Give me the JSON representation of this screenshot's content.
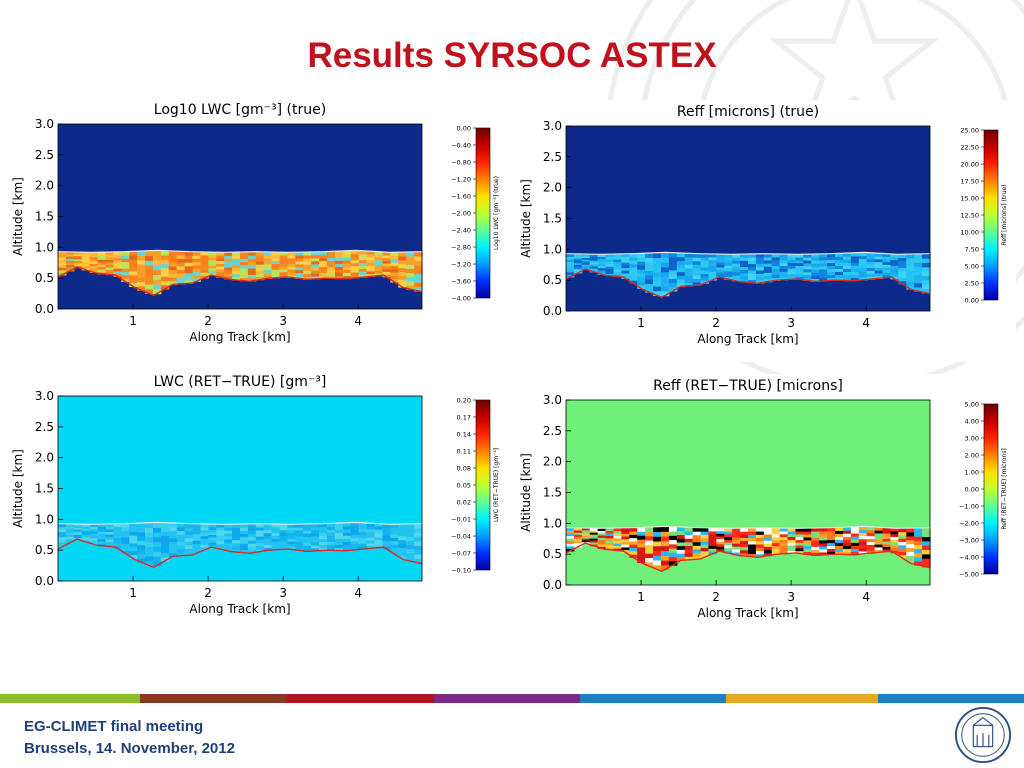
{
  "slide": {
    "title": "Results SYRSOC ASTEX",
    "footer_line1": "EG-CLIMET final meeting",
    "footer_line2": "Brussels, 14. November, 2012",
    "stripe_colors": [
      "#8cbf26",
      "#8a3a1c",
      "#b3121e",
      "#7b2b86",
      "#1d7fc4",
      "#e4a91c",
      "#1d7fc4"
    ],
    "title_color": "#c0121c",
    "footer_color": "#1f3f7a"
  },
  "chart_data": [
    {
      "type": "heatmap",
      "title": "Log10 LWC [gm⁻³] (true)",
      "xlabel": "Along Track [km]",
      "ylabel": "Altitude [km]",
      "xlim": [
        0,
        4.85
      ],
      "ylim": [
        0,
        3.0
      ],
      "xticks": [
        "1",
        "2",
        "3",
        "4"
      ],
      "yticks": [
        "0.0",
        "0.5",
        "1.0",
        "1.5",
        "2.0",
        "2.5",
        "3.0"
      ],
      "colorbar_label": "Log10 LWC [gm⁻³] (true)",
      "colorbar_ticks": [
        "0.00",
        "−0.40",
        "−0.80",
        "−1.20",
        "−1.60",
        "−2.00",
        "−2.40",
        "−2.80",
        "−3.20",
        "−3.60",
        "−4.00"
      ],
      "background": "#0c2a8a",
      "palette": [
        "#ff7f1f",
        "#f9a02a",
        "#ffb63a",
        "#e46a1a",
        "#f08c22",
        "#ffcf48",
        "#b8e35a",
        "#6ad4d0"
      ],
      "cloud_top_km": [
        0.93,
        0.92,
        0.93,
        0.95,
        0.93,
        0.92,
        0.93,
        0.92,
        0.93,
        0.95,
        0.92,
        0.93
      ],
      "cloud_base_km": [
        0.52,
        0.68,
        0.58,
        0.55,
        0.35,
        0.22,
        0.4,
        0.42,
        0.55,
        0.48,
        0.45,
        0.5,
        0.52,
        0.48,
        0.5,
        0.49,
        0.52,
        0.55,
        0.35,
        0.28
      ],
      "base_line_color": "#d92b1f"
    },
    {
      "type": "heatmap",
      "title": "Reff [microns] (true)",
      "xlabel": "Along Track [km]",
      "ylabel": "Altitude [km]",
      "xlim": [
        0,
        4.85
      ],
      "ylim": [
        0,
        3.0
      ],
      "xticks": [
        "1",
        "2",
        "3",
        "4"
      ],
      "yticks": [
        "0.0",
        "0.5",
        "1.0",
        "1.5",
        "2.0",
        "2.5",
        "3.0"
      ],
      "colorbar_label": "Reff [microns] (true)",
      "colorbar_ticks": [
        "25.00",
        "22.50",
        "20.00",
        "17.50",
        "15.00",
        "12.50",
        "10.00",
        "7.50",
        "5.00",
        "2.50",
        "0.00"
      ],
      "background": "#0c2a8a",
      "palette": [
        "#27c2f4",
        "#1aa6ef",
        "#41d3f4",
        "#0f86e0",
        "#1db4f0",
        "#2fcaf0",
        "#0e62c8"
      ],
      "cloud_top_km": [
        0.93,
        0.92,
        0.93,
        0.95,
        0.93,
        0.92,
        0.93,
        0.92,
        0.93,
        0.95,
        0.92,
        0.93
      ],
      "cloud_base_km": [
        0.52,
        0.68,
        0.58,
        0.55,
        0.35,
        0.22,
        0.4,
        0.42,
        0.55,
        0.48,
        0.45,
        0.5,
        0.52,
        0.48,
        0.5,
        0.49,
        0.52,
        0.55,
        0.35,
        0.28
      ],
      "base_line_color": "#d92b1f"
    },
    {
      "type": "heatmap",
      "title": "LWC (RET−TRUE) [gm⁻³]",
      "xlabel": "Along Track [km]",
      "ylabel": "Altitude [km]",
      "xlim": [
        0,
        4.85
      ],
      "ylim": [
        0,
        3.0
      ],
      "xticks": [
        "1",
        "2",
        "3",
        "4"
      ],
      "yticks": [
        "0.0",
        "0.5",
        "1.0",
        "1.5",
        "2.0",
        "2.5",
        "3.0"
      ],
      "colorbar_label": "LWC (RET−TRUE) [gm⁻³]",
      "colorbar_ticks": [
        "0.20",
        "0.17",
        "0.14",
        "0.11",
        "0.08",
        "0.05",
        "0.02",
        "−0.01",
        "−0.04",
        "−0.07",
        "−0.10"
      ],
      "background": "#00d8f6",
      "palette": [
        "#1ec6f2",
        "#37d0f2",
        "#14b4ee",
        "#29c0f0",
        "#52d6ee",
        "#0ea6ec"
      ],
      "cloud_top_km": [
        0.93,
        0.92,
        0.93,
        0.95,
        0.93,
        0.92,
        0.93,
        0.92,
        0.93,
        0.95,
        0.92,
        0.93
      ],
      "cloud_base_km": [
        0.52,
        0.68,
        0.58,
        0.55,
        0.35,
        0.22,
        0.4,
        0.42,
        0.55,
        0.48,
        0.45,
        0.5,
        0.52,
        0.48,
        0.5,
        0.49,
        0.52,
        0.55,
        0.35,
        0.28
      ],
      "base_line_color": "#d92b1f"
    },
    {
      "type": "heatmap",
      "title": "Reff (RET−TRUE) [microns]",
      "xlabel": "Along Track [km]",
      "ylabel": "Altitude [km]",
      "xlim": [
        0,
        4.85
      ],
      "ylim": [
        0,
        3.0
      ],
      "xticks": [
        "1",
        "2",
        "3",
        "4"
      ],
      "yticks": [
        "0.0",
        "0.5",
        "1.0",
        "1.5",
        "2.0",
        "2.5",
        "3.0"
      ],
      "colorbar_label": "Reff (RET−TRUE) [microns]",
      "colorbar_ticks": [
        "5.00",
        "4.00",
        "3.00",
        "2.00",
        "1.00",
        "0.00",
        "−1.00",
        "−2.00",
        "−3.00",
        "−4.00",
        "−5.00"
      ],
      "background": "#6ef07a",
      "palette": [
        "#ff2a1a",
        "#ffd23a",
        "#2ab8f4",
        "#000000",
        "#ff7a1a",
        "#7ae07a",
        "#d81414",
        "#ffa42a",
        "#ffffff"
      ],
      "cloud_top_km": [
        0.93,
        0.92,
        0.93,
        0.95,
        0.93,
        0.92,
        0.93,
        0.92,
        0.93,
        0.95,
        0.92,
        0.93
      ],
      "cloud_base_km": [
        0.52,
        0.68,
        0.58,
        0.55,
        0.35,
        0.22,
        0.4,
        0.42,
        0.55,
        0.48,
        0.45,
        0.5,
        0.52,
        0.48,
        0.5,
        0.49,
        0.52,
        0.55,
        0.35,
        0.28
      ],
      "base_line_color": "#d92b1f"
    }
  ]
}
